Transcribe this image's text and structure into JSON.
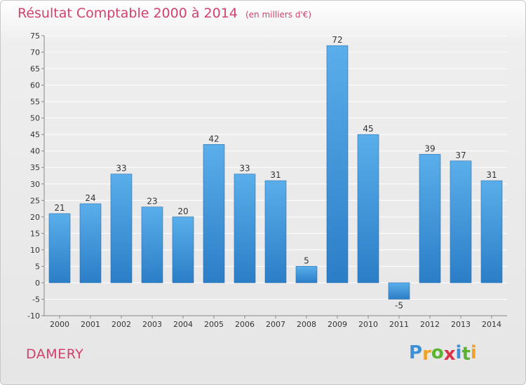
{
  "chart_data": {
    "type": "bar",
    "title": "Résultat Comptable 2000 à 2014",
    "subtitle": "(en milliers d'€)",
    "categories": [
      "2000",
      "2001",
      "2002",
      "2003",
      "2004",
      "2005",
      "2006",
      "2007",
      "2008",
      "2009",
      "2010",
      "2011",
      "2012",
      "2013",
      "2014"
    ],
    "values": [
      21,
      24,
      33,
      23,
      20,
      42,
      33,
      31,
      5,
      72,
      45,
      -5,
      39,
      37,
      31
    ],
    "value_labels": [
      "21",
      "24",
      "33",
      "23",
      "20",
      "42",
      "33",
      "31",
      "5",
      "72",
      "45",
      "-5",
      "39",
      "37",
      "31"
    ],
    "ylim": [
      -10,
      75
    ],
    "yticks": [
      -10,
      -5,
      0,
      5,
      10,
      15,
      20,
      25,
      30,
      35,
      40,
      45,
      50,
      55,
      60,
      65,
      70,
      75
    ],
    "ytick_labels": [
      "-10",
      "-5",
      "0",
      "5",
      "10",
      "15",
      "20",
      "25",
      "30",
      "35",
      "40",
      "45",
      "50",
      "55",
      "60",
      "65",
      "70",
      "75"
    ],
    "xlabel": "",
    "ylabel": "",
    "grid": true,
    "colors": {
      "bar_light": "#5aaeea",
      "bar_dark": "#2b7ec6",
      "title": "#d0426b",
      "grid": "#ffffff"
    }
  },
  "commune": "DAMERY",
  "logo": {
    "letters": [
      "P",
      "r",
      "o",
      "x",
      "i",
      "t",
      "i"
    ],
    "colors": [
      "#3e8fd6",
      "#f0a12a",
      "#5cb233",
      "#d9344a",
      "#3e8fd6",
      "#5cb233",
      "#f0a12a"
    ]
  }
}
